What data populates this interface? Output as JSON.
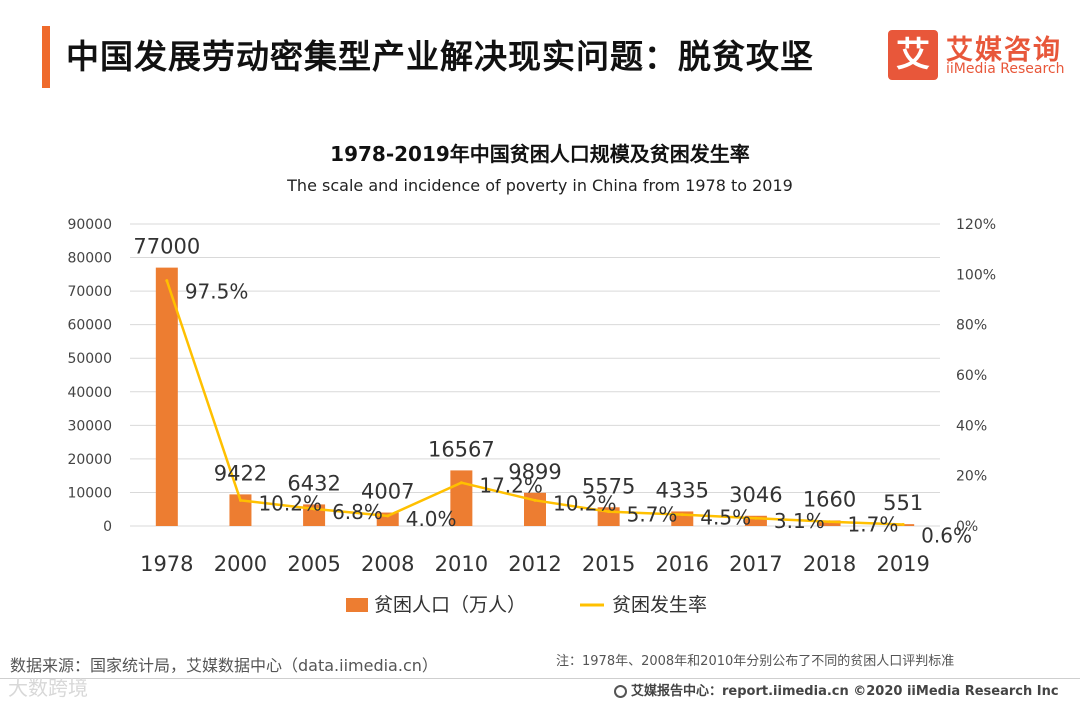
{
  "page": {
    "title": "中国发展劳动密集型产业解决现实问题：脱贫攻坚",
    "logo_mark": "艾",
    "logo_cn": "艾媒咨询",
    "logo_en": "iiMedia Research"
  },
  "footer": {
    "source": "数据来源：国家统计局，艾媒数据中心（data.iimedia.cn）",
    "note": "注：1978年、2008年和2010年分别公布了不同的贫困人口评判标准",
    "watermark": "大数跨境",
    "copyright": "艾媒报告中心：report.iimedia.cn  ©2020  iiMedia Research  Inc"
  },
  "colors": {
    "bar": "#ed7d31",
    "line": "#ffc000",
    "accent": "#ef6a2b"
  },
  "chart_data": {
    "type": "bar+line",
    "title": "1978-2019年中国贫困人口规模及贫困发生率",
    "subtitle": "The scale and incidence of poverty in China from 1978 to 2019",
    "categories": [
      "1978",
      "2000",
      "2005",
      "2008",
      "2010",
      "2012",
      "2015",
      "2016",
      "2017",
      "2018",
      "2019"
    ],
    "series": [
      {
        "name": "贫困人口（万人）",
        "type": "bar",
        "axis": "left",
        "values": [
          77000,
          9422,
          6432,
          4007,
          16567,
          9899,
          5575,
          4335,
          3046,
          1660,
          551
        ],
        "labels": [
          "77000",
          "9422",
          "6432",
          "4007",
          "16567",
          "9899",
          "5575",
          "4335",
          "3046",
          "1660",
          "551"
        ]
      },
      {
        "name": "贫困发生率",
        "type": "line",
        "axis": "right",
        "values": [
          97.5,
          10.2,
          6.8,
          4.0,
          17.2,
          10.2,
          5.7,
          4.5,
          3.1,
          1.7,
          0.6
        ],
        "labels": [
          "97.5%",
          "10.2%",
          "6.8%",
          "4.0%",
          "17.2%",
          "10.2%",
          "5.7%",
          "4.5%",
          "3.1%",
          "1.7%",
          "0.6%"
        ]
      }
    ],
    "y_left": {
      "min": 0,
      "max": 90000,
      "ticks": [
        "0",
        "10000",
        "20000",
        "30000",
        "40000",
        "50000",
        "60000",
        "70000",
        "80000",
        "90000"
      ]
    },
    "y_right": {
      "min": 0,
      "max": 120,
      "ticks": [
        "0%",
        "20%",
        "40%",
        "60%",
        "80%",
        "100%",
        "120%"
      ]
    },
    "grid": true,
    "legend": "bottom"
  }
}
